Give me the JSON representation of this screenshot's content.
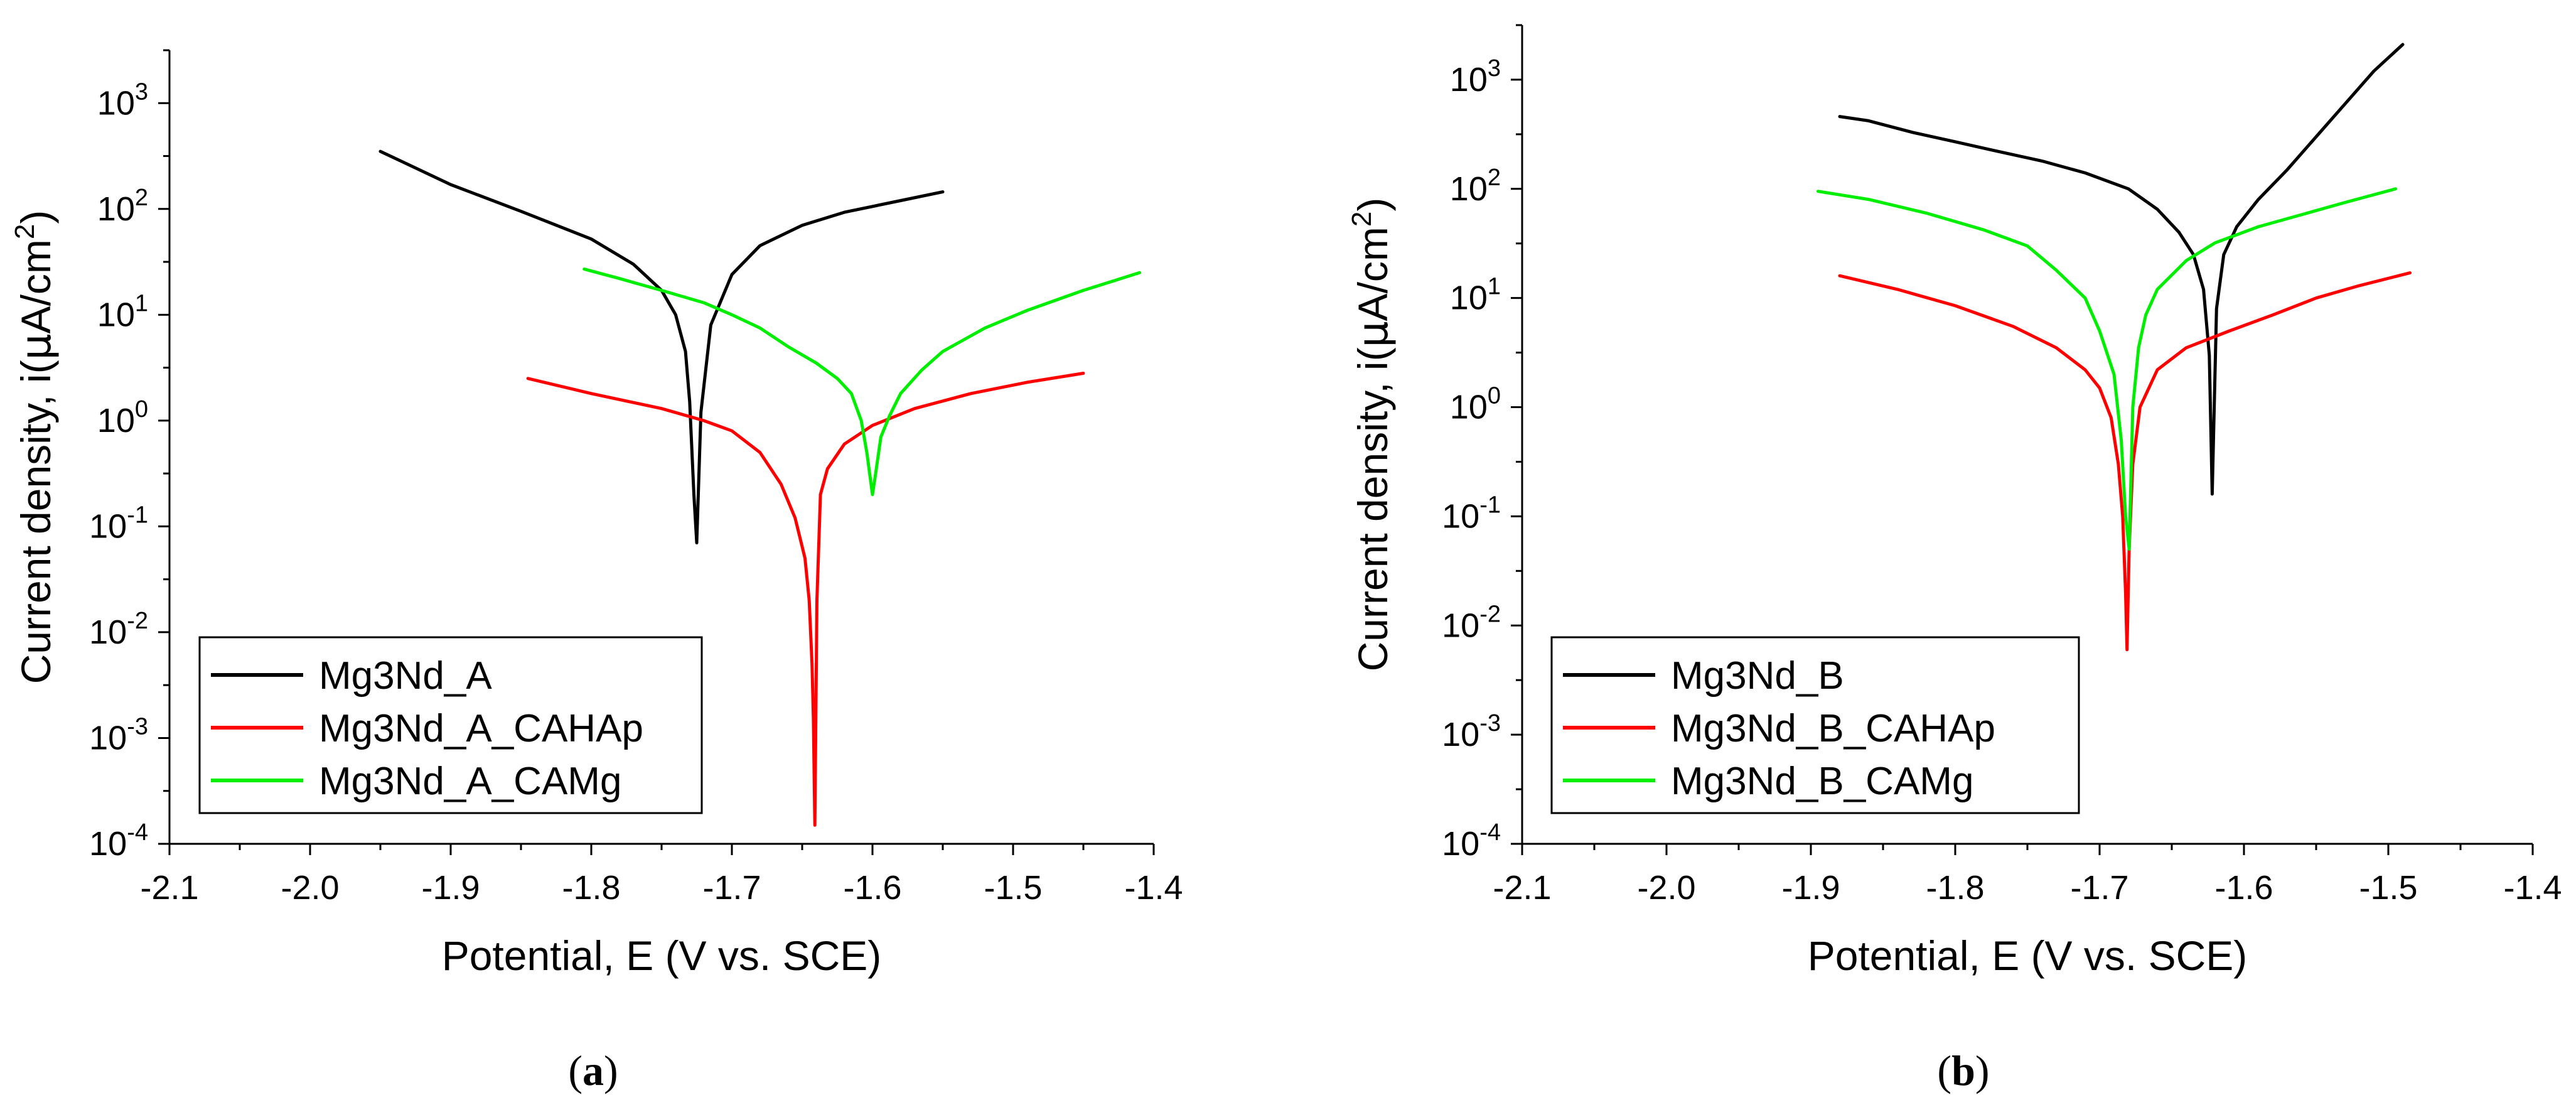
{
  "chart_data": [
    {
      "type": "line",
      "panel_label": "a",
      "xlabel": "Potential, E (V vs. SCE)",
      "ylabel_prefix": "Current density, i(",
      "ylabel_mu": "μ",
      "ylabel_unit": "A/cm",
      "ylabel_sup": "2",
      "ylabel_suffix": ")",
      "xlim": [
        -2.1,
        -1.4
      ],
      "ylim_exp": [
        -4,
        3.5
      ],
      "xticks": [
        "-2.1",
        "-2.0",
        "-1.9",
        "-1.8",
        "-1.7",
        "-1.6",
        "-1.5",
        "-1.4"
      ],
      "yticks": [
        {
          "base": "10",
          "exp": "-4"
        },
        {
          "base": "10",
          "exp": "-3"
        },
        {
          "base": "10",
          "exp": "-2"
        },
        {
          "base": "10",
          "exp": "-1"
        },
        {
          "base": "10",
          "exp": "0"
        },
        {
          "base": "10",
          "exp": "1"
        },
        {
          "base": "10",
          "exp": "2"
        },
        {
          "base": "10",
          "exp": "3"
        }
      ],
      "legend_position": "lower-left",
      "series": [
        {
          "name": "Mg3Nd_A",
          "color": "#000000",
          "x": [
            -1.95,
            -1.9,
            -1.85,
            -1.8,
            -1.77,
            -1.75,
            -1.74,
            -1.733,
            -1.73,
            -1.727,
            -1.725,
            -1.722,
            -1.715,
            -1.7,
            -1.68,
            -1.65,
            -1.62,
            -1.58,
            -1.55
          ],
          "y": [
            350,
            170,
            95,
            52,
            30,
            17,
            10,
            4.5,
            1.5,
            0.2,
            0.07,
            1.2,
            8,
            24,
            45,
            70,
            93,
            120,
            145
          ]
        },
        {
          "name": "Mg3Nd_A_CAHAp",
          "color": "#ff0000",
          "x": [
            -1.845,
            -1.8,
            -1.75,
            -1.72,
            -1.7,
            -1.68,
            -1.665,
            -1.655,
            -1.648,
            -1.645,
            -1.643,
            -1.642,
            -1.641,
            -1.6395,
            -1.637,
            -1.632,
            -1.62,
            -1.6,
            -1.57,
            -1.53,
            -1.49,
            -1.45
          ],
          "y": [
            2.5,
            1.8,
            1.3,
            1.0,
            0.8,
            0.5,
            0.25,
            0.12,
            0.05,
            0.02,
            0.005,
            0.0015,
            0.00015,
            0.02,
            0.2,
            0.35,
            0.6,
            0.9,
            1.3,
            1.8,
            2.3,
            2.8
          ]
        },
        {
          "name": "Mg3Nd_A_CAMg",
          "color": "#00ee00",
          "x": [
            -1.805,
            -1.78,
            -1.75,
            -1.72,
            -1.7,
            -1.68,
            -1.66,
            -1.64,
            -1.625,
            -1.615,
            -1.608,
            -1.604,
            -1.6,
            -1.598,
            -1.594,
            -1.588,
            -1.58,
            -1.565,
            -1.55,
            -1.52,
            -1.49,
            -1.45,
            -1.41
          ],
          "y": [
            27,
            22,
            17,
            13,
            10,
            7.5,
            5,
            3.5,
            2.5,
            1.8,
            1.0,
            0.5,
            0.2,
            0.3,
            0.7,
            1.1,
            1.8,
            3.0,
            4.5,
            7.5,
            11,
            17,
            25
          ]
        }
      ]
    },
    {
      "type": "line",
      "panel_label": "b",
      "xlabel": "Potential, E (V vs. SCE)",
      "ylabel_prefix": "Current density, i(",
      "ylabel_mu": "μ",
      "ylabel_unit": "A/cm",
      "ylabel_sup": "2",
      "ylabel_suffix": ")",
      "xlim": [
        -2.1,
        -1.4
      ],
      "ylim_exp": [
        -4,
        3.5
      ],
      "xticks": [
        "-2.1",
        "-2.0",
        "-1.9",
        "-1.8",
        "-1.7",
        "-1.6",
        "-1.5",
        "-1.4"
      ],
      "yticks": [
        {
          "base": "10",
          "exp": "-4"
        },
        {
          "base": "10",
          "exp": "-3"
        },
        {
          "base": "10",
          "exp": "-2"
        },
        {
          "base": "10",
          "exp": "-1"
        },
        {
          "base": "10",
          "exp": "0"
        },
        {
          "base": "10",
          "exp": "1"
        },
        {
          "base": "10",
          "exp": "2"
        },
        {
          "base": "10",
          "exp": "3"
        }
      ],
      "legend_position": "lower-left",
      "series": [
        {
          "name": "Mg3Nd_B",
          "color": "#000000",
          "x": [
            -1.88,
            -1.86,
            -1.83,
            -1.8,
            -1.77,
            -1.74,
            -1.71,
            -1.68,
            -1.66,
            -1.645,
            -1.635,
            -1.628,
            -1.624,
            -1.622,
            -1.619,
            -1.614,
            -1.605,
            -1.59,
            -1.57,
            -1.55,
            -1.53,
            -1.51,
            -1.49
          ],
          "y": [
            460,
            420,
            330,
            270,
            220,
            180,
            140,
            100,
            65,
            40,
            25,
            12,
            3,
            0.16,
            8,
            25,
            45,
            80,
            150,
            300,
            600,
            1200,
            2100
          ]
        },
        {
          "name": "Mg3Nd_B_CAHAp",
          "color": "#ff0000",
          "x": [
            -1.88,
            -1.84,
            -1.8,
            -1.76,
            -1.73,
            -1.71,
            -1.7,
            -1.692,
            -1.687,
            -1.684,
            -1.682,
            -1.681,
            -1.6795,
            -1.677,
            -1.672,
            -1.66,
            -1.64,
            -1.61,
            -1.58,
            -1.55,
            -1.52,
            -1.485
          ],
          "y": [
            16,
            12,
            8.5,
            5.5,
            3.5,
            2.2,
            1.5,
            0.8,
            0.3,
            0.1,
            0.02,
            0.006,
            0.05,
            0.3,
            1.0,
            2.2,
            3.5,
            5.0,
            7.0,
            10,
            13,
            17
          ]
        },
        {
          "name": "Mg3Nd_B_CAMg",
          "color": "#00ee00",
          "x": [
            -1.895,
            -1.86,
            -1.82,
            -1.78,
            -1.75,
            -1.73,
            -1.71,
            -1.7,
            -1.69,
            -1.685,
            -1.682,
            -1.6795,
            -1.677,
            -1.673,
            -1.668,
            -1.66,
            -1.64,
            -1.62,
            -1.59,
            -1.56,
            -1.53,
            -1.495
          ],
          "y": [
            95,
            80,
            60,
            42,
            30,
            18,
            10,
            5,
            2,
            0.5,
            0.1,
            0.05,
            1.0,
            3.5,
            7,
            12,
            22,
            32,
            45,
            58,
            75,
            100
          ]
        }
      ]
    }
  ]
}
